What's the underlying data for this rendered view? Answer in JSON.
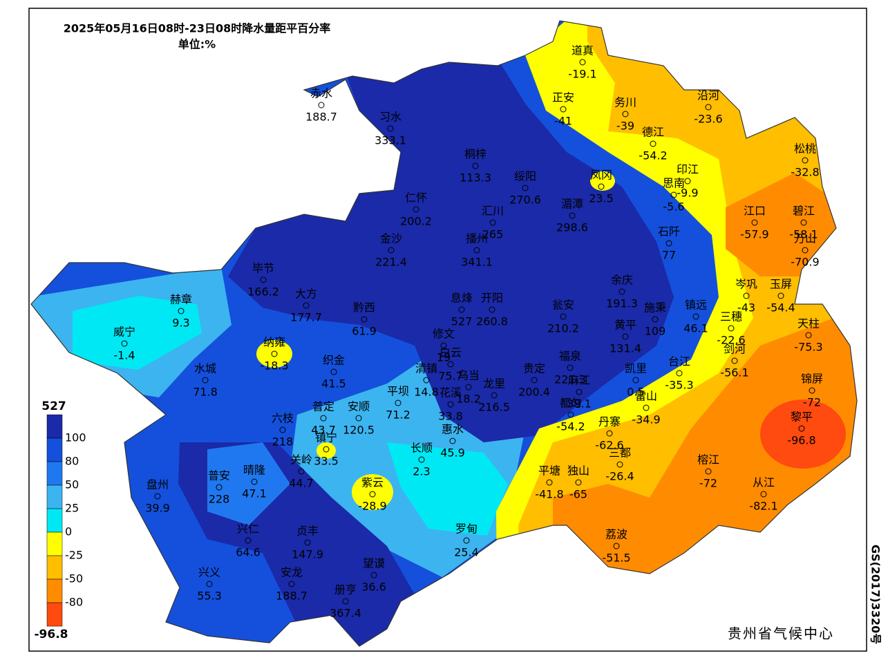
{
  "header": {
    "title": "2025年05月16日08时-23日08时降水量距平百分率",
    "unit": "单位:%"
  },
  "stations": [
    {
      "name": "赤水",
      "value": 188.7
    },
    {
      "name": "习水",
      "value": 333.1
    },
    {
      "name": "桐梓",
      "value": 113.3
    },
    {
      "name": "绥阳",
      "value": 270.6
    },
    {
      "name": "湄潭",
      "value": 298.6
    },
    {
      "name": "道真",
      "value": -19.1
    },
    {
      "name": "正安",
      "value": -41
    },
    {
      "name": "务川",
      "value": -39
    },
    {
      "name": "德江",
      "value": -54.2
    },
    {
      "name": "沿河",
      "value": -23.6
    },
    {
      "name": "松桃",
      "value": -32.8
    },
    {
      "name": "凤冈",
      "value": 23.5
    },
    {
      "name": "印江",
      "value": -9.9
    },
    {
      "name": "思南",
      "value": -5.6
    },
    {
      "name": "江口",
      "value": -57.9
    },
    {
      "name": "碧江",
      "value": -58.1
    },
    {
      "name": "万山",
      "value": -70.9
    },
    {
      "name": "石阡",
      "value": 77
    },
    {
      "name": "仁怀",
      "value": 200.2
    },
    {
      "name": "汇川",
      "value": 265
    },
    {
      "name": "金沙",
      "value": 221.4
    },
    {
      "name": "播州",
      "value": 341.1
    },
    {
      "name": "毕节",
      "value": 166.2
    },
    {
      "name": "大方",
      "value": 177.7
    },
    {
      "name": "赫章",
      "value": 9.3
    },
    {
      "name": "威宁",
      "value": -1.4
    },
    {
      "name": "黔西",
      "value": 61.9
    },
    {
      "name": "息烽",
      "value": 527
    },
    {
      "name": "开阳",
      "value": 260.8
    },
    {
      "name": "瓮安",
      "value": 210.2
    },
    {
      "name": "余庆",
      "value": 191.3
    },
    {
      "name": "施秉",
      "value": 109
    },
    {
      "name": "镇远",
      "value": 46.1
    },
    {
      "name": "岑巩",
      "value": -43
    },
    {
      "name": "玉屏",
      "value": -54.4
    },
    {
      "name": "三穗",
      "value": -22.6
    },
    {
      "name": "天柱",
      "value": -75.3
    },
    {
      "name": "黄平",
      "value": 131.4
    },
    {
      "name": "纳雍",
      "value": -18.3
    },
    {
      "name": "织金",
      "value": 41.5
    },
    {
      "name": "修文",
      "value": 19
    },
    {
      "name": "白云",
      "value": 75.7
    },
    {
      "name": "清镇",
      "value": 14.8
    },
    {
      "name": "乌当",
      "value": 18.2
    },
    {
      "name": "水城",
      "value": 71.8
    },
    {
      "name": "福泉",
      "value": 221.3
    },
    {
      "name": "贵定",
      "value": 200.4
    },
    {
      "name": "凯里",
      "value": 0.5
    },
    {
      "name": "剑河",
      "value": -56.1
    },
    {
      "name": "台江",
      "value": -35.3
    },
    {
      "name": "麻江",
      "value": 39.1
    },
    {
      "name": "都匀",
      "value": -54.2
    },
    {
      "name": "雷山",
      "value": -34.9
    },
    {
      "name": "锦屏",
      "value": -72
    },
    {
      "name": "黎平",
      "value": -96.8
    },
    {
      "name": "平坝",
      "value": 71.2
    },
    {
      "name": "花溪",
      "value": 33.8
    },
    {
      "name": "龙里",
      "value": 216.5
    },
    {
      "name": "普定",
      "value": 43.7
    },
    {
      "name": "安顺",
      "value": 120.5
    },
    {
      "name": "六枝",
      "value": 218
    },
    {
      "name": "镇宁",
      "value": 33.5
    },
    {
      "name": "关岭",
      "value": 44.7
    },
    {
      "name": "惠水",
      "value": 45.9
    },
    {
      "name": "长顺",
      "value": 2.3
    },
    {
      "name": "丹寨",
      "value": -62.6
    },
    {
      "name": "三都",
      "value": -26.4
    },
    {
      "name": "榕江",
      "value": -72
    },
    {
      "name": "从江",
      "value": -82.1
    },
    {
      "name": "盘州",
      "value": 39.9
    },
    {
      "name": "普安",
      "value": 228
    },
    {
      "name": "晴隆",
      "value": 47.1
    },
    {
      "name": "紫云",
      "value": -28.9
    },
    {
      "name": "平塘",
      "value": -41.8
    },
    {
      "name": "独山",
      "value": -65
    },
    {
      "name": "罗甸",
      "value": 25.4
    },
    {
      "name": "荔波",
      "value": -51.5
    },
    {
      "name": "兴仁",
      "value": 64.6
    },
    {
      "name": "贞丰",
      "value": 147.9
    },
    {
      "name": "望谟",
      "value": 36.6
    },
    {
      "name": "兴义",
      "value": 55.3
    },
    {
      "name": "安龙",
      "value": 188.7
    },
    {
      "name": "册亨",
      "value": 367.4
    }
  ],
  "legend": {
    "labels": [
      527,
      100,
      80,
      50,
      25,
      0,
      -25,
      -50,
      -80,
      -96.8
    ],
    "colors": [
      "#1a2aa8",
      "#1450dc",
      "#2078f0",
      "#3cb4f0",
      "#00e8f4",
      "#ffff00",
      "#ffbe00",
      "#ff8c00",
      "#ff4a10"
    ]
  },
  "footer": {
    "credit": "贵州省气候中心",
    "approval": "GS(2017)3320号"
  }
}
